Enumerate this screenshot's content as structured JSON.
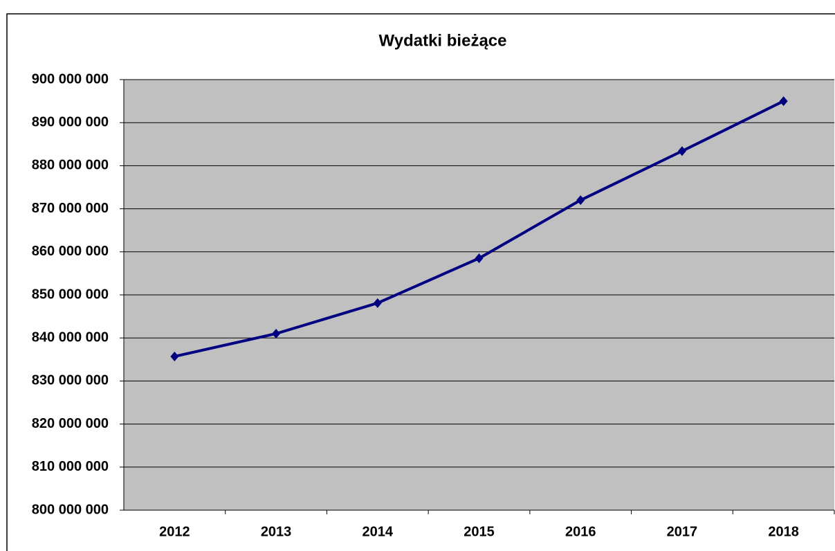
{
  "chart_data": {
    "type": "line",
    "title": "Wydatki bieżące",
    "categories": [
      "2012",
      "2013",
      "2014",
      "2015",
      "2016",
      "2017",
      "2018"
    ],
    "series": [
      {
        "name": "Wydatki bieżące",
        "color": "#000080",
        "values": [
          835700000,
          841000000,
          848100000,
          858500000,
          872000000,
          883400000,
          895000000
        ]
      }
    ],
    "ylim": [
      800000000,
      900000000
    ],
    "yticks": [
      {
        "value": 800000000,
        "label": "800 000 000"
      },
      {
        "value": 810000000,
        "label": "810 000 000"
      },
      {
        "value": 820000000,
        "label": "820 000 000"
      },
      {
        "value": 830000000,
        "label": "830 000 000"
      },
      {
        "value": 840000000,
        "label": "840 000 000"
      },
      {
        "value": 850000000,
        "label": "850 000 000"
      },
      {
        "value": 860000000,
        "label": "860 000 000"
      },
      {
        "value": 870000000,
        "label": "870 000 000"
      },
      {
        "value": 880000000,
        "label": "880 000 000"
      },
      {
        "value": 890000000,
        "label": "890 000 000"
      },
      {
        "value": 900000000,
        "label": "900 000 000"
      }
    ],
    "grid": true,
    "plot_background": "#c0c0c0"
  }
}
